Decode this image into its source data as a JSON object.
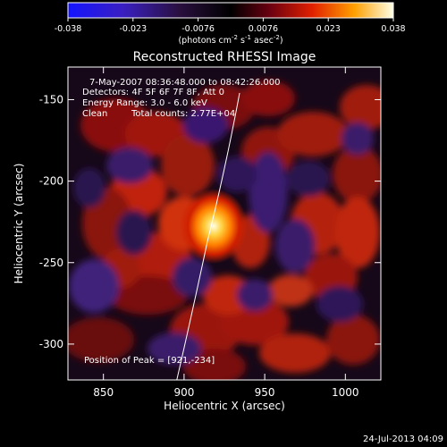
{
  "colorbar": {
    "tick_labels": [
      "-0.038",
      "-0.023",
      "-0.0076",
      "0.0076",
      "0.023",
      "0.038"
    ],
    "units_html": "(photons cm<tspan baseline-shift=\"super\" font-size=\"7\">-2</tspan> s<tspan baseline-shift=\"super\" font-size=\"7\">-1</tspan> asec<tspan baseline-shift=\"super\" font-size=\"7\">-2</tspan>)"
  },
  "plot": {
    "title": "Reconstructed RHESSI Image",
    "xlabel": "Heliocentric X (arcsec)",
    "ylabel": "Heliocentric Y (arcsec)",
    "x_ticks": [
      "850",
      "900",
      "950",
      "1000"
    ],
    "y_ticks": [
      "-150",
      "-200",
      "-250",
      "-300"
    ],
    "x_range": [
      828,
      1022
    ],
    "y_range": [
      -322,
      -130
    ],
    "peak": {
      "x": 921,
      "y": -234
    }
  },
  "overlay": {
    "time_range": "7-May-2007 08:36:48.000 to 08:42:26.000",
    "detectors": "Detectors: 4F 5F 6F 7F 8F, Att 0",
    "energy": "Energy Range: 3.0 - 6.0 keV",
    "clean": "Clean",
    "counts": "Total counts: 2.77E+04",
    "peak_label": "Position of Peak = [921,-234]"
  },
  "timestamp": "24-Jul-2013 04:09",
  "colors": {
    "background": "#000000",
    "text": "#ffffff",
    "colormap_neg": "#1414ff",
    "colormap_zero": "#000000",
    "colormap_pos": "#ffffe0"
  }
}
